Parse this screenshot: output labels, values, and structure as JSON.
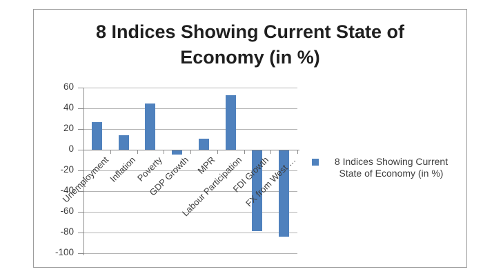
{
  "page": {
    "background": "#ffffff"
  },
  "chart": {
    "title_line1": "8 Indices Showing Current State of",
    "title_line2": "Economy (in %)",
    "legend": {
      "swatch_icon": "series-swatch-icon",
      "swatch_color": "#4f81bd",
      "label": "8 Indices Showing Current State of Economy (in %)"
    }
  },
  "colors": {
    "bar": "#4f81bd",
    "gridline": "#b3b3b3",
    "zero_line": "#7f7f7f",
    "axis_line": "#8c8c8c",
    "label_text": "#3d3d3d",
    "title_text": "#1f1f1f",
    "frame_border": "#9c9c9c"
  },
  "chart_data": {
    "type": "bar",
    "title": "8 Indices Showing Current State of Economy (in %)",
    "categories": [
      "Unemployment",
      "Inflation",
      "Poverty",
      "GDP Growth",
      "MPR",
      "Labour Participation",
      "FDI Growth",
      "FX from West …"
    ],
    "series": [
      {
        "name": "8 Indices Showing Current State of Economy (in %)",
        "values": [
          27,
          14,
          45,
          -4,
          11,
          53,
          -78,
          -83
        ]
      }
    ],
    "y_ticks": [
      60,
      40,
      20,
      0,
      -20,
      -40,
      -60,
      -80,
      -100
    ],
    "ylim": [
      -100,
      60
    ],
    "xlabel": "",
    "ylabel": "",
    "grid": true,
    "legend_position": "right"
  }
}
